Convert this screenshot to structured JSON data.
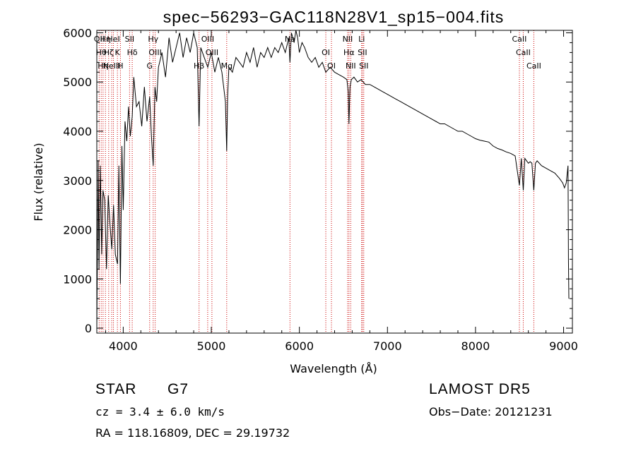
{
  "chart_data": {
    "type": "line",
    "title": "spec−56293−GAC118N28V1_sp15−004.fits",
    "xlabel": "Wavelength (Å)",
    "ylabel": "Flux (relative)",
    "xlim": [
      3700,
      9100
    ],
    "ylim": [
      -100,
      6050
    ],
    "xticks": [
      4000,
      5000,
      6000,
      7000,
      8000,
      9000
    ],
    "yticks": [
      0,
      1000,
      2000,
      3000,
      4000,
      5000,
      6000
    ],
    "xtick_labels": [
      "4000",
      "5000",
      "6000",
      "7000",
      "8000",
      "9000"
    ],
    "ytick_labels": [
      "0",
      "1000",
      "2000",
      "3000",
      "4000",
      "5000",
      "6000"
    ],
    "grid": false,
    "series": [
      {
        "x": [
          3700,
          3715,
          3725,
          3740,
          3755,
          3770,
          3790,
          3810,
          3830,
          3850,
          3870,
          3890,
          3910,
          3935,
          3950,
          3968,
          3985,
          4000,
          4020,
          4040,
          4060,
          4080,
          4102,
          4120,
          4150,
          4180,
          4210,
          4240,
          4270,
          4300,
          4320,
          4340,
          4360,
          4380,
          4400,
          4440,
          4480,
          4520,
          4560,
          4600,
          4640,
          4680,
          4720,
          4760,
          4800,
          4840,
          4861,
          4880,
          4920,
          4960,
          5000,
          5040,
          5080,
          5120,
          5160,
          5175,
          5185,
          5200,
          5240,
          5280,
          5320,
          5360,
          5400,
          5440,
          5480,
          5520,
          5560,
          5600,
          5640,
          5680,
          5720,
          5760,
          5800,
          5840,
          5880,
          5893,
          5910,
          5940,
          5960,
          5980,
          6000,
          6030,
          6060,
          6100,
          6140,
          6180,
          6220,
          6260,
          6300,
          6350,
          6400,
          6450,
          6500,
          6540,
          6555,
          6563,
          6575,
          6590,
          6620,
          6660,
          6700,
          6750,
          6800,
          6850,
          6900,
          6950,
          7000,
          7050,
          7100,
          7150,
          7200,
          7250,
          7300,
          7350,
          7400,
          7450,
          7500,
          7550,
          7600,
          7650,
          7700,
          7750,
          7800,
          7850,
          7900,
          7950,
          8000,
          8050,
          8100,
          8150,
          8200,
          8250,
          8300,
          8350,
          8400,
          8450,
          8498,
          8520,
          8542,
          8560,
          8580,
          8600,
          8620,
          8640,
          8662,
          8680,
          8700,
          8750,
          8800,
          8850,
          8900,
          8950,
          8990,
          9010,
          9030,
          9045,
          9050,
          9055,
          9060
        ],
        "y": [
          0,
          3400,
          1200,
          3300,
          1500,
          2800,
          2600,
          1200,
          2700,
          2100,
          1600,
          2500,
          1500,
          1300,
          3300,
          900,
          3700,
          2400,
          4200,
          3800,
          4500,
          3900,
          4300,
          5100,
          4500,
          4600,
          4100,
          4900,
          4200,
          4700,
          3900,
          3300,
          4900,
          4600,
          5300,
          5600,
          5100,
          5900,
          5400,
          5700,
          6000,
          5500,
          5900,
          5600,
          6000,
          5700,
          4100,
          5700,
          5500,
          5300,
          5600,
          5200,
          5500,
          5200,
          4600,
          3600,
          4700,
          5300,
          5200,
          5500,
          5400,
          5300,
          5600,
          5400,
          5700,
          5300,
          5600,
          5500,
          5700,
          5500,
          5700,
          5600,
          5800,
          5600,
          5900,
          5400,
          6000,
          5800,
          6050,
          5900,
          5600,
          5800,
          5700,
          5500,
          5400,
          5500,
          5300,
          5400,
          5200,
          5300,
          5200,
          5150,
          5100,
          5050,
          4800,
          4150,
          4900,
          5050,
          5100,
          5000,
          5050,
          4950,
          4950,
          4900,
          4850,
          4800,
          4750,
          4700,
          4650,
          4600,
          4550,
          4500,
          4450,
          4400,
          4350,
          4300,
          4250,
          4200,
          4150,
          4150,
          4100,
          4050,
          4000,
          4000,
          3950,
          3900,
          3850,
          3820,
          3800,
          3780,
          3700,
          3650,
          3620,
          3580,
          3550,
          3500,
          2900,
          3450,
          2800,
          3450,
          3400,
          3350,
          3380,
          3350,
          2800,
          3350,
          3400,
          3300,
          3250,
          3200,
          3150,
          3050,
          2950,
          2850,
          2950,
          3200,
          3300,
          1400,
          600
        ]
      }
    ],
    "lines": [
      {
        "x": 3727,
        "label": "OII"
      },
      {
        "x": 3750,
        "label": "Hθ"
      },
      {
        "x": 3771,
        "label": "Hη"
      },
      {
        "x": 3798,
        "label": "Hη"
      },
      {
        "x": 3835,
        "label": "Hζ"
      },
      {
        "x": 3869,
        "label": "NeIII"
      },
      {
        "x": 3889,
        "label": "HeI"
      },
      {
        "x": 3934,
        "label": "K"
      },
      {
        "x": 3968,
        "label": "H"
      },
      {
        "x": 4072,
        "label": "SII"
      },
      {
        "x": 4102,
        "label": "Hδ"
      },
      {
        "x": 4300,
        "label": "G"
      },
      {
        "x": 4340,
        "label": "Hγ"
      },
      {
        "x": 4363,
        "label": "OIII"
      },
      {
        "x": 4861,
        "label": "Hβ"
      },
      {
        "x": 4959,
        "label": "OIII"
      },
      {
        "x": 5007,
        "label": "OIII"
      },
      {
        "x": 5175,
        "label": "Mg"
      },
      {
        "x": 5893,
        "label": "Na"
      },
      {
        "x": 6300,
        "label": "OI"
      },
      {
        "x": 6364,
        "label": "OI"
      },
      {
        "x": 6548,
        "label": "NII"
      },
      {
        "x": 6563,
        "label": "Hα"
      },
      {
        "x": 6583,
        "label": "NII"
      },
      {
        "x": 6707,
        "label": "Li"
      },
      {
        "x": 6716,
        "label": "SII"
      },
      {
        "x": 6731,
        "label": "SII"
      },
      {
        "x": 8498,
        "label": "CaII"
      },
      {
        "x": 8542,
        "label": "CaII"
      },
      {
        "x": 8662,
        "label": "CaII"
      }
    ],
    "line_color": "#cc0000",
    "spectrum_color": "#000000"
  },
  "info": {
    "object_type": "STAR",
    "subclass": "G7",
    "survey": "LAMOST DR5",
    "redshift": "cz = 3.4 ± 6.0 km/s",
    "obs_date": "Obs−Date: 20121231",
    "coords": "RA = 118.16809, DEC =  29.19732"
  }
}
